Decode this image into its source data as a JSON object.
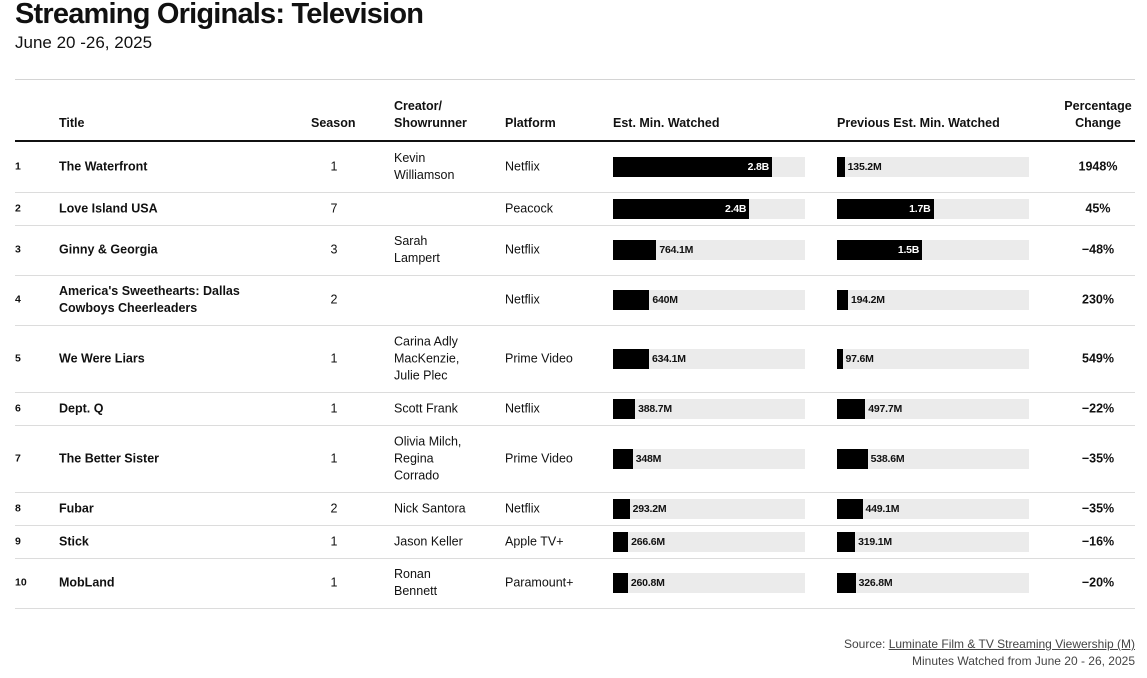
{
  "header": {
    "title": "Streaming Originals: Television",
    "subtitle": "June 20 -26, 2025"
  },
  "columns": {
    "title": "Title",
    "season": "Season",
    "creator": [
      "Creator/",
      "Showrunner"
    ],
    "platform": "Platform",
    "est": "Est. Min. Watched",
    "prev": "Previous Est. Min. Watched",
    "pct": [
      "Percentage",
      "Change"
    ]
  },
  "footer": {
    "source_prefix": "Source: ",
    "source_link": "Luminate Film & TV Streaming Viewership (M)",
    "note": "Minutes Watched from June 20 - 26, 2025"
  },
  "chart_data": {
    "type": "table",
    "bar_max": 3.38,
    "bar_unit": "B",
    "rows": [
      {
        "rank": "1",
        "title": [
          "The Waterfront"
        ],
        "season": "1",
        "creator": [
          "Kevin",
          "Williamson"
        ],
        "platform": "Netflix",
        "est_value": 2.8,
        "est_label": "2.8B",
        "prev_value": 0.1352,
        "prev_label": "135.2M",
        "pct": "1948%"
      },
      {
        "rank": "2",
        "title": [
          "Love Island USA"
        ],
        "season": "7",
        "creator": [],
        "platform": "Peacock",
        "est_value": 2.4,
        "est_label": "2.4B",
        "prev_value": 1.7,
        "prev_label": "1.7B",
        "pct": "45%"
      },
      {
        "rank": "3",
        "title": [
          "Ginny & Georgia"
        ],
        "season": "3",
        "creator": [
          "Sarah",
          "Lampert"
        ],
        "platform": "Netflix",
        "est_value": 0.7641,
        "est_label": "764.1M",
        "prev_value": 1.5,
        "prev_label": "1.5B",
        "pct": "−48%"
      },
      {
        "rank": "4",
        "title": [
          "America's Sweethearts: Dallas",
          "Cowboys Cheerleaders"
        ],
        "season": "2",
        "creator": [],
        "platform": "Netflix",
        "est_value": 0.64,
        "est_label": "640M",
        "prev_value": 0.1942,
        "prev_label": "194.2M",
        "pct": "230%"
      },
      {
        "rank": "5",
        "title": [
          "We Were Liars"
        ],
        "season": "1",
        "creator": [
          "Carina Adly",
          "MacKenzie,",
          "Julie Plec"
        ],
        "platform": "Prime Video",
        "est_value": 0.6341,
        "est_label": "634.1M",
        "prev_value": 0.0976,
        "prev_label": "97.6M",
        "pct": "549%"
      },
      {
        "rank": "6",
        "title": [
          "Dept. Q"
        ],
        "season": "1",
        "creator": [
          "Scott Frank"
        ],
        "platform": "Netflix",
        "est_value": 0.3887,
        "est_label": "388.7M",
        "prev_value": 0.4977,
        "prev_label": "497.7M",
        "pct": "−22%"
      },
      {
        "rank": "7",
        "title": [
          "The Better Sister"
        ],
        "season": "1",
        "creator": [
          "Olivia Milch,",
          "Regina",
          "Corrado"
        ],
        "platform": "Prime Video",
        "est_value": 0.348,
        "est_label": "348M",
        "prev_value": 0.5386,
        "prev_label": "538.6M",
        "pct": "−35%"
      },
      {
        "rank": "8",
        "title": [
          "Fubar"
        ],
        "season": "2",
        "creator": [
          "Nick Santora"
        ],
        "platform": "Netflix",
        "est_value": 0.2932,
        "est_label": "293.2M",
        "prev_value": 0.4491,
        "prev_label": "449.1M",
        "pct": "−35%"
      },
      {
        "rank": "9",
        "title": [
          "Stick"
        ],
        "season": "1",
        "creator": [
          "Jason Keller"
        ],
        "platform": "Apple TV+",
        "est_value": 0.2666,
        "est_label": "266.6M",
        "prev_value": 0.3191,
        "prev_label": "319.1M",
        "pct": "−16%"
      },
      {
        "rank": "10",
        "title": [
          "MobLand"
        ],
        "season": "1",
        "creator": [
          "Ronan",
          "Bennett"
        ],
        "platform": "Paramount+",
        "est_value": 0.2608,
        "est_label": "260.8M",
        "prev_value": 0.3268,
        "prev_label": "326.8M",
        "pct": "−20%"
      }
    ]
  }
}
